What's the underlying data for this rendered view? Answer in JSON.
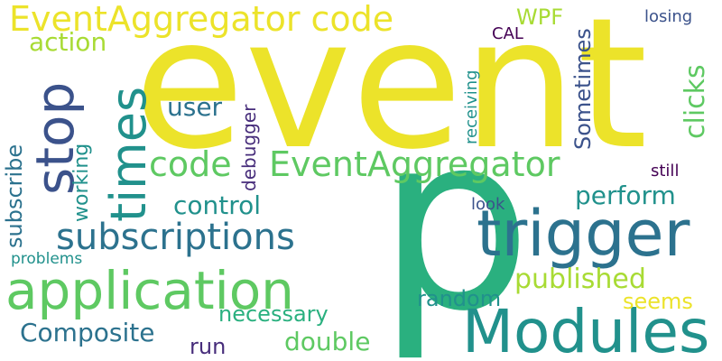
{
  "palette": {
    "yellow": "#ece32a",
    "lime": "#a8db34",
    "green": "#5ec962",
    "teal_green": "#2ab07f",
    "teal": "#21918c",
    "blue_teal": "#2c728e",
    "indigo": "#3b528b",
    "purple": "#472d7b",
    "dark_purple": "#440154"
  },
  "words": [
    {
      "id": "event",
      "text": "event"
    },
    {
      "id": "p",
      "text": "p"
    },
    {
      "id": "eventaggregator-top",
      "text": "EventAggregator code"
    },
    {
      "id": "code",
      "text": "code"
    },
    {
      "id": "eventaggregator-mid",
      "text": "EventAggregator"
    },
    {
      "id": "application",
      "text": "application"
    },
    {
      "id": "modules",
      "text": "Modules"
    },
    {
      "id": "trigger",
      "text": "trigger"
    },
    {
      "id": "subscriptions",
      "text": "subscriptions"
    },
    {
      "id": "times",
      "text": "times"
    },
    {
      "id": "stop",
      "text": "stop"
    },
    {
      "id": "action",
      "text": "action"
    },
    {
      "id": "user",
      "text": "user"
    },
    {
      "id": "control",
      "text": "control"
    },
    {
      "id": "perform",
      "text": "perform"
    },
    {
      "id": "published",
      "text": "published"
    },
    {
      "id": "random",
      "text": "random"
    },
    {
      "id": "composite",
      "text": "Composite"
    },
    {
      "id": "necessary",
      "text": "necessary"
    },
    {
      "id": "double",
      "text": "double"
    },
    {
      "id": "run",
      "text": "run"
    },
    {
      "id": "seems",
      "text": "seems"
    },
    {
      "id": "problems",
      "text": "problems"
    },
    {
      "id": "subscribe",
      "text": "subscribe"
    },
    {
      "id": "working",
      "text": "working"
    },
    {
      "id": "debugger",
      "text": "debugger"
    },
    {
      "id": "receiving",
      "text": "receiving"
    },
    {
      "id": "sometimes",
      "text": "Sometimes"
    },
    {
      "id": "clicks",
      "text": "clicks"
    },
    {
      "id": "wpf",
      "text": "WPF"
    },
    {
      "id": "cal",
      "text": "CAL"
    },
    {
      "id": "losing",
      "text": "losing"
    },
    {
      "id": "still",
      "text": "still"
    },
    {
      "id": "look",
      "text": "look"
    }
  ]
}
